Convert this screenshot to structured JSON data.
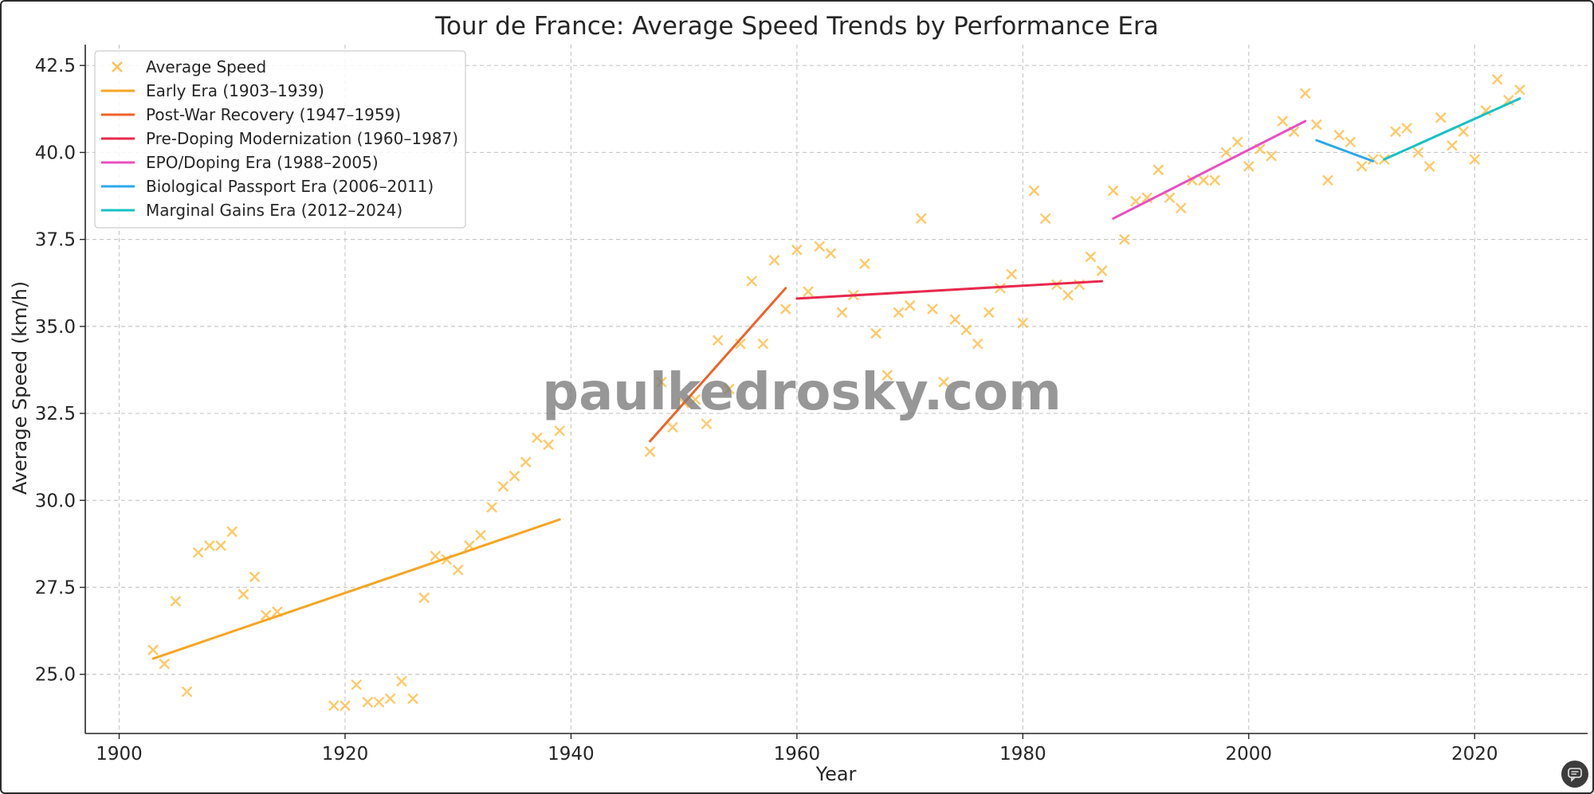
{
  "watermark": "paulkedrosky.com",
  "corner_button": {
    "icon": "chat-icon"
  },
  "chart_data": {
    "type": "scatter",
    "title": "Tour de France: Average Speed Trends by Performance Era",
    "xlabel": "Year",
    "ylabel": "Average Speed (km/h)",
    "xlim": [
      1897,
      2030
    ],
    "ylim": [
      23.3,
      43.1
    ],
    "xticks": [
      1900,
      1920,
      1940,
      1960,
      1980,
      2000,
      2020
    ],
    "yticks": [
      25.0,
      27.5,
      30.0,
      32.5,
      35.0,
      37.5,
      40.0,
      42.5
    ],
    "ytick_labels": [
      "25.0",
      "27.5",
      "30.0",
      "32.5",
      "35.0",
      "37.5",
      "40.0",
      "42.5"
    ],
    "grid": true,
    "legend_position": "top-left",
    "scatter": {
      "name": "Average Speed",
      "color": "#ffc04d",
      "marker": "x",
      "points": [
        [
          1903,
          25.7
        ],
        [
          1904,
          25.3
        ],
        [
          1905,
          27.1
        ],
        [
          1906,
          24.5
        ],
        [
          1907,
          28.5
        ],
        [
          1908,
          28.7
        ],
        [
          1909,
          28.7
        ],
        [
          1910,
          29.1
        ],
        [
          1911,
          27.3
        ],
        [
          1912,
          27.8
        ],
        [
          1913,
          26.7
        ],
        [
          1914,
          26.8
        ],
        [
          1919,
          24.1
        ],
        [
          1920,
          24.1
        ],
        [
          1921,
          24.7
        ],
        [
          1922,
          24.2
        ],
        [
          1923,
          24.2
        ],
        [
          1924,
          24.3
        ],
        [
          1925,
          24.8
        ],
        [
          1926,
          24.3
        ],
        [
          1927,
          27.2
        ],
        [
          1928,
          28.4
        ],
        [
          1929,
          28.3
        ],
        [
          1930,
          28.0
        ],
        [
          1931,
          28.7
        ],
        [
          1932,
          29.0
        ],
        [
          1933,
          29.8
        ],
        [
          1934,
          30.4
        ],
        [
          1935,
          30.7
        ],
        [
          1936,
          31.1
        ],
        [
          1937,
          31.8
        ],
        [
          1938,
          31.6
        ],
        [
          1939,
          32.0
        ],
        [
          1947,
          31.4
        ],
        [
          1948,
          33.4
        ],
        [
          1949,
          32.1
        ],
        [
          1950,
          32.8
        ],
        [
          1951,
          32.9
        ],
        [
          1952,
          32.2
        ],
        [
          1953,
          34.6
        ],
        [
          1954,
          33.2
        ],
        [
          1955,
          34.5
        ],
        [
          1956,
          36.3
        ],
        [
          1957,
          34.5
        ],
        [
          1958,
          36.9
        ],
        [
          1959,
          35.5
        ],
        [
          1960,
          37.2
        ],
        [
          1961,
          36.0
        ],
        [
          1962,
          37.3
        ],
        [
          1963,
          37.1
        ],
        [
          1964,
          35.4
        ],
        [
          1965,
          35.9
        ],
        [
          1966,
          36.8
        ],
        [
          1967,
          34.8
        ],
        [
          1968,
          33.6
        ],
        [
          1969,
          35.4
        ],
        [
          1970,
          35.6
        ],
        [
          1971,
          38.1
        ],
        [
          1972,
          35.5
        ],
        [
          1973,
          33.4
        ],
        [
          1974,
          35.2
        ],
        [
          1975,
          34.9
        ],
        [
          1976,
          34.5
        ],
        [
          1977,
          35.4
        ],
        [
          1978,
          36.1
        ],
        [
          1979,
          36.5
        ],
        [
          1980,
          35.1
        ],
        [
          1981,
          38.9
        ],
        [
          1982,
          38.1
        ],
        [
          1983,
          36.2
        ],
        [
          1984,
          35.9
        ],
        [
          1985,
          36.2
        ],
        [
          1986,
          37.0
        ],
        [
          1987,
          36.6
        ],
        [
          1988,
          38.9
        ],
        [
          1989,
          37.5
        ],
        [
          1990,
          38.6
        ],
        [
          1991,
          38.7
        ],
        [
          1992,
          39.5
        ],
        [
          1993,
          38.7
        ],
        [
          1994,
          38.4
        ],
        [
          1995,
          39.2
        ],
        [
          1996,
          39.2
        ],
        [
          1997,
          39.2
        ],
        [
          1998,
          40.0
        ],
        [
          1999,
          40.3
        ],
        [
          2000,
          39.6
        ],
        [
          2001,
          40.1
        ],
        [
          2002,
          39.9
        ],
        [
          2003,
          40.9
        ],
        [
          2004,
          40.6
        ],
        [
          2005,
          41.7
        ],
        [
          2006,
          40.8
        ],
        [
          2007,
          39.2
        ],
        [
          2008,
          40.5
        ],
        [
          2009,
          40.3
        ],
        [
          2010,
          39.6
        ],
        [
          2011,
          39.8
        ],
        [
          2012,
          39.8
        ],
        [
          2013,
          40.6
        ],
        [
          2014,
          40.7
        ],
        [
          2015,
          40.0
        ],
        [
          2016,
          39.6
        ],
        [
          2017,
          41.0
        ],
        [
          2018,
          40.2
        ],
        [
          2019,
          40.6
        ],
        [
          2020,
          39.8
        ],
        [
          2021,
          41.2
        ],
        [
          2022,
          42.1
        ],
        [
          2023,
          41.5
        ],
        [
          2024,
          41.8
        ]
      ]
    },
    "series": [
      {
        "name": "Early Era (1903–1939)",
        "color": "#f5a623",
        "x": [
          1903,
          1939
        ],
        "y": [
          25.45,
          29.45
        ]
      },
      {
        "name": "Post-War Recovery (1947–1959)",
        "color": "#ef6228",
        "x": [
          1947,
          1959
        ],
        "y": [
          31.7,
          36.1
        ]
      },
      {
        "name": "Pre-Doping Modernization (1960–1987)",
        "color": "#e8284e",
        "x": [
          1960,
          1987
        ],
        "y": [
          35.8,
          36.3
        ]
      },
      {
        "name": "EPO/Doping Era (1988–2005)",
        "color": "#ea4fc0",
        "x": [
          1988,
          2005
        ],
        "y": [
          38.1,
          40.9
        ]
      },
      {
        "name": "Biological Passport Era (2006–2011)",
        "color": "#2aa9e8",
        "x": [
          2006,
          2011
        ],
        "y": [
          40.35,
          39.75
        ]
      },
      {
        "name": "Marginal Gains Era (2012–2024)",
        "color": "#15c2c4",
        "x": [
          2012,
          2024
        ],
        "y": [
          39.8,
          41.55
        ]
      }
    ]
  }
}
